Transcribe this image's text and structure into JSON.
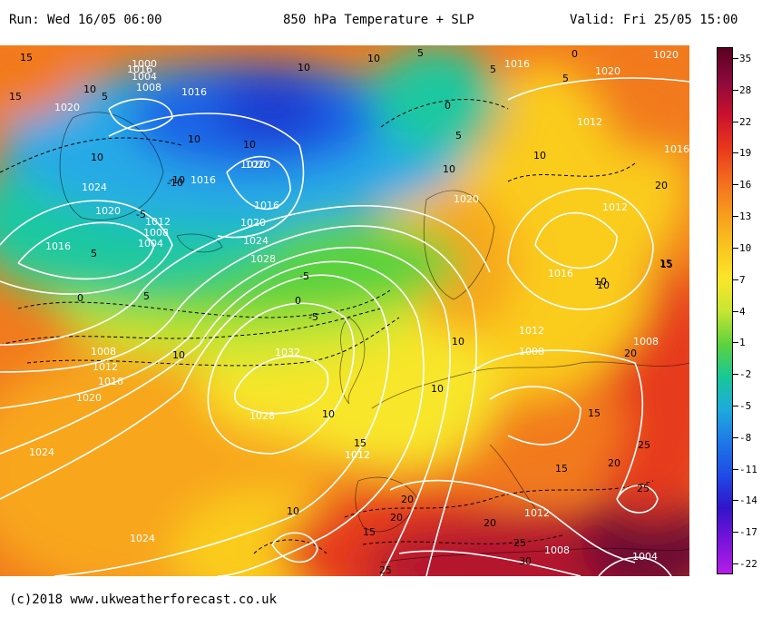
{
  "header": {
    "run": "Run: Wed 16/05 06:00",
    "title": "850 hPa Temperature + SLP",
    "valid": "Valid: Fri 25/05 15:00"
  },
  "footer": "(c)2018 www.ukweatherforecast.co.uk",
  "colorbar": {
    "labels": [
      "35",
      "28",
      "22",
      "19",
      "16",
      "13",
      "10",
      "7",
      "4",
      "1",
      "-2",
      "-5",
      "-8",
      "-11",
      "-14",
      "-17",
      "-22"
    ],
    "colors": [
      "#5a0020",
      "#8b0a3c",
      "#c8102e",
      "#e8361c",
      "#f26a1e",
      "#f79a1e",
      "#fac21e",
      "#fbe62a",
      "#c8e632",
      "#5fd23c",
      "#18c896",
      "#1eaadc",
      "#1e78e6",
      "#1e4be6",
      "#3214c8",
      "#7814dc",
      "#b41ee6"
    ]
  },
  "map": {
    "colors": {
      "deep_maroon": "#6e0a30",
      "dark_red": "#b4142d",
      "red": "#e63a1e",
      "orange": "#f27a1e",
      "light_orange": "#f8a61e",
      "gold": "#facc1e",
      "yellow": "#f8e62a",
      "lime": "#c8e632",
      "green": "#5ad23c",
      "teal": "#1ec8a0",
      "cyan": "#28aae6",
      "blue": "#1e64e6",
      "deep_blue": "#1e3cd2",
      "contour": "#ffffff",
      "isotherm": "#000000"
    },
    "pressure_labels": [
      "1016",
      "1020",
      "1000",
      "1004",
      "1008",
      "1016",
      "1020",
      "1024",
      "1020",
      "1016",
      "1012",
      "1008",
      "1004",
      "1016",
      "1020",
      "1024",
      "1028",
      "1020",
      "1016",
      "1032",
      "1008",
      "1012",
      "1016",
      "1020",
      "1028",
      "1024",
      "1024",
      "1012",
      "1012",
      "1008",
      "1016",
      "1020",
      "1012",
      "1020",
      "1016",
      "1012",
      "1016",
      "1008",
      "1012",
      "1008",
      "1004",
      "1012",
      "1020"
    ],
    "temp_labels": [
      "15",
      "15",
      "10",
      "5",
      "10",
      "5",
      "10",
      "5",
      "10",
      "-10",
      "10",
      "10",
      "0",
      "10",
      "-5",
      "0",
      "5",
      "-5",
      "-5",
      "10",
      "5",
      "5",
      "0",
      "10",
      "10",
      "10",
      "15",
      "20",
      "10",
      "10",
      "10",
      "15",
      "20",
      "15",
      "20",
      "15",
      "20",
      "20",
      "25",
      "15",
      "25",
      "25",
      "30",
      "-10",
      "0",
      "5",
      "10",
      "15",
      "20",
      "25"
    ]
  }
}
